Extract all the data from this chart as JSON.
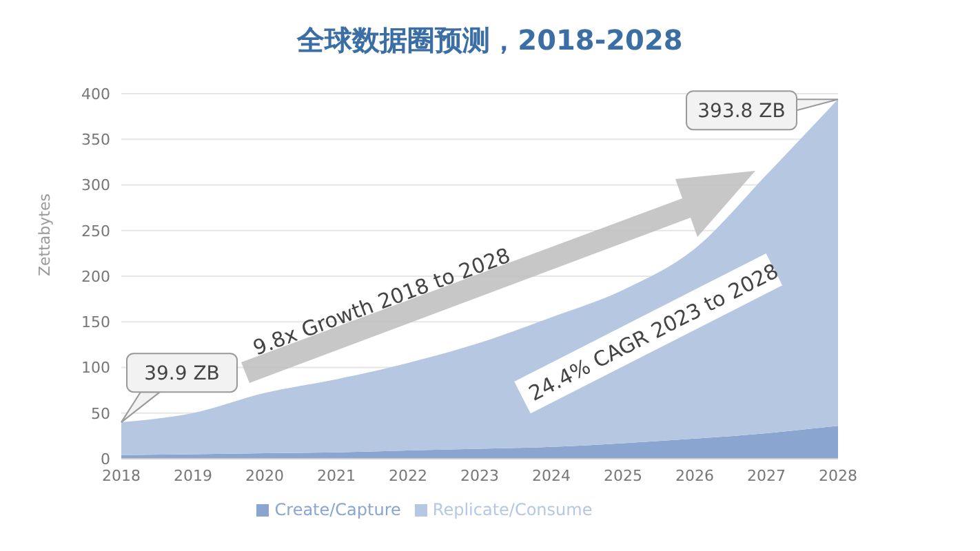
{
  "chart_data": {
    "type": "area",
    "stacked": true,
    "title": "全球数据圈预测，2018-2028",
    "ylabel": "Zettabytes",
    "categories": [
      "2018",
      "2019",
      "2020",
      "2021",
      "2022",
      "2023",
      "2024",
      "2025",
      "2026",
      "2027",
      "2028"
    ],
    "series": [
      {
        "name": "Create/Capture",
        "color": "#8aa5cf",
        "values": [
          4,
          5,
          6,
          7,
          9,
          11,
          13,
          17,
          22,
          28,
          36
        ]
      },
      {
        "name": "Replicate/Consume",
        "color": "#b5c7e1",
        "values": [
          36,
          45,
          66,
          80,
          96,
          116,
          142,
          168,
          208,
          283,
          358
        ]
      }
    ],
    "ylim": [
      0,
      400
    ],
    "yticks": [
      0,
      50,
      100,
      150,
      200,
      250,
      300,
      350,
      400
    ],
    "grid": "y",
    "legend": "bottom",
    "annotations": [
      {
        "text": "39.9 ZB",
        "x": "2018",
        "y": 39.9
      },
      {
        "text": "393.8 ZB",
        "x": "2028",
        "y": 393.8
      },
      "9.8x Growth 2018 to 2028",
      "24.4% CAGR 2023 to 2028"
    ]
  }
}
